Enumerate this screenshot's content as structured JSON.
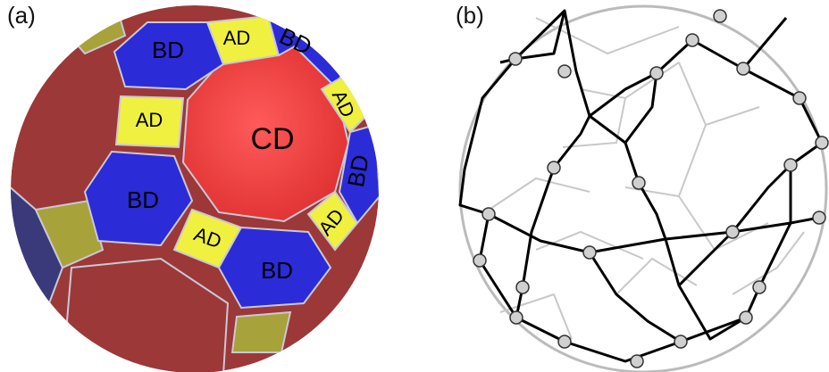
{
  "panels": [
    {
      "label": "(a)",
      "faces": [
        "BD",
        "AD",
        "BD",
        "AD",
        "AD",
        "CD",
        "BD",
        "BD",
        "AD",
        "AD",
        "BD"
      ]
    },
    {
      "label": "(b)"
    }
  ]
}
